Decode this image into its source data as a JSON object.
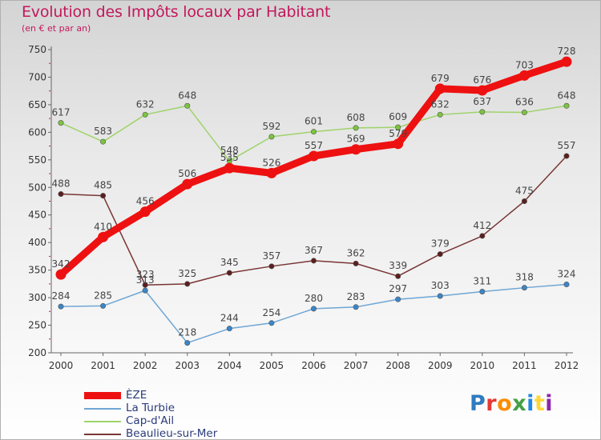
{
  "title": "Evolution des Impôts locaux par Habitant",
  "subtitle": "(en € et par an)",
  "logo": {
    "text": "Proxiti",
    "letter_colors": [
      "#2e7bbf",
      "#e53935",
      "#fb8c00",
      "#43a047",
      "#1e88e5",
      "#fdd835",
      "#8e24aa"
    ]
  },
  "chart_data": {
    "type": "line",
    "x": [
      2000,
      2001,
      2002,
      2003,
      2004,
      2005,
      2006,
      2007,
      2008,
      2009,
      2010,
      2011,
      2012
    ],
    "ylim": [
      200,
      750
    ],
    "yticks": [
      200,
      250,
      300,
      350,
      400,
      450,
      500,
      550,
      600,
      650,
      700,
      750
    ],
    "grid": false,
    "legend_position": "bottom-left",
    "series": [
      {
        "name": "ÈZE",
        "color": "#ee1111",
        "width": 9,
        "marker_color": "#ee1111",
        "values": [
          342,
          410,
          456,
          506,
          535,
          526,
          557,
          569,
          579,
          679,
          676,
          703,
          728
        ],
        "labels": [
          "342",
          "410",
          "456",
          "506",
          "535",
          "526",
          "557",
          "569",
          "579",
          "679",
          "676",
          "703",
          "728"
        ]
      },
      {
        "name": "La Turbie",
        "color": "#6fa6d4",
        "width": 1.5,
        "marker_color": "#3a86c8",
        "values": [
          284,
          285,
          313,
          218,
          244,
          254,
          280,
          283,
          297,
          303,
          311,
          318,
          324
        ],
        "labels": [
          "284",
          "285",
          "313",
          "218",
          "244",
          "254",
          "280",
          "283",
          "297",
          "303",
          "311",
          "318",
          "324"
        ]
      },
      {
        "name": "Cap-d'Ail",
        "color": "#9ed36a",
        "width": 1.5,
        "marker_color": "#7cc43e",
        "values": [
          617,
          583,
          632,
          648,
          548,
          592,
          601,
          608,
          609,
          632,
          637,
          636,
          648
        ],
        "labels": [
          "617",
          "583",
          "632",
          "648",
          "548",
          "592",
          "601",
          "608",
          "609",
          "632",
          "637",
          "636",
          "648"
        ]
      },
      {
        "name": "Beaulieu-sur-Mer",
        "color": "#7a3535",
        "width": 1.5,
        "marker_color": "#5a1f1f",
        "values": [
          488,
          485,
          323,
          325,
          345,
          357,
          367,
          362,
          339,
          379,
          412,
          475,
          557
        ],
        "labels": [
          "488",
          "485",
          "323",
          "325",
          "345",
          "357",
          "367",
          "362",
          "339",
          "379",
          "412",
          "475",
          "557"
        ]
      }
    ]
  }
}
